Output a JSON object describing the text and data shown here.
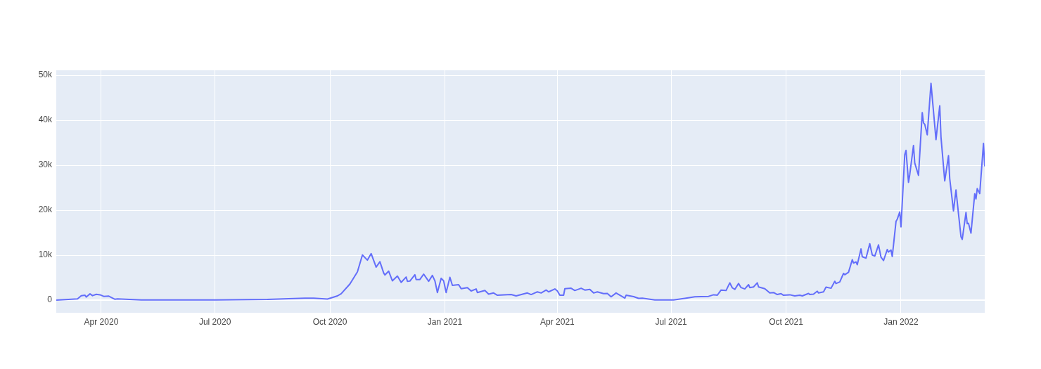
{
  "chart_data": {
    "type": "line",
    "grid": true,
    "legend": false,
    "marker": "none",
    "line_style": "solid",
    "xlim": [
      "2020-02-25",
      "2022-03-09"
    ],
    "xticks": [
      {
        "value": "2020-04-01",
        "label": "Apr 2020"
      },
      {
        "value": "2020-07-01",
        "label": "Jul 2020"
      },
      {
        "value": "2020-10-01",
        "label": "Oct 2020"
      },
      {
        "value": "2021-01-01",
        "label": "Jan 2021"
      },
      {
        "value": "2021-04-01",
        "label": "Apr 2021"
      },
      {
        "value": "2021-07-01",
        "label": "Jul 2021"
      },
      {
        "value": "2021-10-01",
        "label": "Oct 2021"
      },
      {
        "value": "2022-01-01",
        "label": "Jan 2022"
      }
    ],
    "ylim": [
      -2800,
      51100
    ],
    "yticks": [
      {
        "value": 0,
        "label": "0"
      },
      {
        "value": 10000,
        "label": "10k"
      },
      {
        "value": 20000,
        "label": "20k"
      },
      {
        "value": 30000,
        "label": "30k"
      },
      {
        "value": 40000,
        "label": "40k"
      },
      {
        "value": 50000,
        "label": "50k"
      }
    ],
    "x": [
      "2020-02-25",
      "2020-03-13",
      "2020-03-16",
      "2020-03-19",
      "2020-03-20",
      "2020-03-23",
      "2020-03-25",
      "2020-03-28",
      "2020-03-31",
      "2020-04-03",
      "2020-04-07",
      "2020-04-12",
      "2020-04-14",
      "2020-05-03",
      "2020-07-02",
      "2020-08-12",
      "2020-09-11",
      "2020-09-18",
      "2020-09-29",
      "2020-10-07",
      "2020-10-10",
      "2020-10-17",
      "2020-10-23",
      "2020-10-27",
      "2020-10-31",
      "2020-11-03",
      "2020-11-07",
      "2020-11-10",
      "2020-11-13",
      "2020-11-14",
      "2020-11-17",
      "2020-11-20",
      "2020-11-24",
      "2020-11-27",
      "2020-12-01",
      "2020-12-02",
      "2020-12-04",
      "2020-12-08",
      "2020-12-09",
      "2020-12-12",
      "2020-12-15",
      "2020-12-19",
      "2020-12-22",
      "2020-12-24",
      "2020-12-26",
      "2020-12-29",
      "2020-12-31",
      "2021-01-02",
      "2021-01-05",
      "2021-01-07",
      "2021-01-12",
      "2021-01-14",
      "2021-01-19",
      "2021-01-22",
      "2021-01-26",
      "2021-01-27",
      "2021-02-02",
      "2021-02-05",
      "2021-02-09",
      "2021-02-12",
      "2021-02-23",
      "2021-02-27",
      "2021-03-08",
      "2021-03-11",
      "2021-03-16",
      "2021-03-19",
      "2021-03-23",
      "2021-03-25",
      "2021-03-30",
      "2021-04-01",
      "2021-04-03",
      "2021-04-06",
      "2021-04-07",
      "2021-04-12",
      "2021-04-15",
      "2021-04-20",
      "2021-04-23",
      "2021-04-27",
      "2021-04-30",
      "2021-05-03",
      "2021-05-08",
      "2021-05-11",
      "2021-05-14",
      "2021-05-18",
      "2021-05-25",
      "2021-05-26",
      "2021-06-01",
      "2021-06-05",
      "2021-06-08",
      "2021-06-18",
      "2021-07-03",
      "2021-07-12",
      "2021-07-20",
      "2021-07-25",
      "2021-07-31",
      "2021-08-04",
      "2021-08-07",
      "2021-08-10",
      "2021-08-14",
      "2021-08-17",
      "2021-08-19",
      "2021-08-21",
      "2021-08-24",
      "2021-08-26",
      "2021-08-29",
      "2021-09-01",
      "2021-09-02",
      "2021-09-05",
      "2021-09-08",
      "2021-09-09",
      "2021-09-14",
      "2021-09-18",
      "2021-09-21",
      "2021-09-24",
      "2021-09-27",
      "2021-09-29",
      "2021-10-04",
      "2021-10-08",
      "2021-10-12",
      "2021-10-14",
      "2021-10-19",
      "2021-10-20",
      "2021-10-23",
      "2021-10-26",
      "2021-10-27",
      "2021-10-31",
      "2021-11-02",
      "2021-11-06",
      "2021-11-09",
      "2021-11-10",
      "2021-11-13",
      "2021-11-16",
      "2021-11-17",
      "2021-11-20",
      "2021-11-23",
      "2021-11-24",
      "2021-11-26",
      "2021-11-27",
      "2021-11-30",
      "2021-12-01",
      "2021-12-04",
      "2021-12-07",
      "2021-12-09",
      "2021-12-11",
      "2021-12-14",
      "2021-12-16",
      "2021-12-18",
      "2021-12-21",
      "2021-12-22",
      "2021-12-24",
      "2021-12-25",
      "2021-12-28",
      "2021-12-29",
      "2021-12-31",
      "2022-01-01",
      "2022-01-04",
      "2022-01-05",
      "2022-01-07",
      "2022-01-08",
      "2022-01-11",
      "2022-01-12",
      "2022-01-15",
      "2022-01-18",
      "2022-01-19",
      "2022-01-20",
      "2022-01-22",
      "2022-01-25",
      "2022-01-29",
      "2022-02-01",
      "2022-02-02",
      "2022-02-05",
      "2022-02-08",
      "2022-02-09",
      "2022-02-12",
      "2022-02-14",
      "2022-02-16",
      "2022-02-18",
      "2022-02-19",
      "2022-02-22",
      "2022-02-23",
      "2022-02-24",
      "2022-02-26",
      "2022-03-01",
      "2022-03-02",
      "2022-03-03",
      "2022-03-05",
      "2022-03-08",
      "2022-03-09"
    ],
    "series": [
      {
        "color": "#636efa",
        "values": [
          0,
          300,
          1000,
          1100,
          700,
          1400,
          1000,
          1300,
          1200,
          850,
          900,
          200,
          300,
          50,
          50,
          150,
          450,
          450,
          250,
          950,
          1450,
          3600,
          6300,
          10050,
          8900,
          10350,
          7350,
          8550,
          6050,
          5600,
          6450,
          4300,
          5350,
          3950,
          5150,
          4200,
          4250,
          5650,
          4600,
          4600,
          5800,
          4200,
          5500,
          4300,
          1700,
          4850,
          4300,
          1700,
          5100,
          3300,
          3450,
          2550,
          2800,
          2050,
          2500,
          1700,
          2150,
          1350,
          1600,
          1100,
          1250,
          950,
          1600,
          1250,
          1850,
          1600,
          2250,
          1850,
          2500,
          2050,
          1100,
          1100,
          2550,
          2650,
          2150,
          2650,
          2250,
          2400,
          1600,
          1850,
          1450,
          1500,
          750,
          1600,
          450,
          1100,
          800,
          400,
          450,
          50,
          50,
          400,
          750,
          800,
          850,
          1200,
          1100,
          2250,
          2150,
          3850,
          2750,
          2400,
          3700,
          2800,
          2500,
          3450,
          2800,
          2950,
          3850,
          2950,
          2550,
          1600,
          1700,
          1250,
          1450,
          1100,
          1200,
          950,
          1100,
          950,
          1500,
          1250,
          1350,
          2000,
          1600,
          1850,
          2900,
          2650,
          4200,
          3700,
          4050,
          5950,
          5650,
          6200,
          9000,
          8250,
          8500,
          7900,
          11400,
          9650,
          9350,
          12550,
          10050,
          9800,
          12300,
          9550,
          8800,
          11250,
          10700,
          11150,
          9700,
          17500,
          18000,
          19600,
          16300,
          32350,
          33300,
          26200,
          27900,
          34400,
          30500,
          27750,
          41700,
          39400,
          39100,
          36750,
          48200,
          35700,
          43200,
          36250,
          26500,
          32100,
          27000,
          19850,
          24500,
          19200,
          14100,
          13500,
          19500,
          17000,
          17100,
          14900,
          23650,
          22500,
          24800,
          23700,
          34850,
          29750
        ]
      }
    ]
  }
}
